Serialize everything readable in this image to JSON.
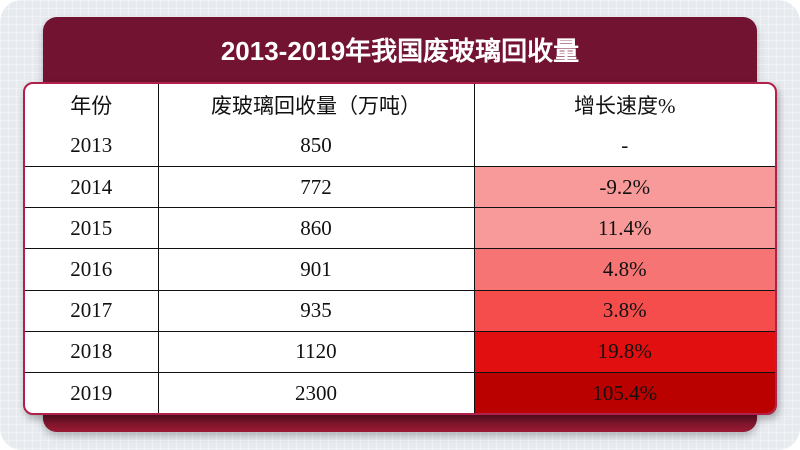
{
  "chart_data": {
    "type": "table",
    "title": "2013-2019年我国废玻璃回收量",
    "columns": [
      "年份",
      "废玻璃回收量（万吨）",
      "增长速度%"
    ],
    "rows": [
      {
        "year": "2013",
        "amount": "850",
        "growth": "-",
        "color": "#ffffff"
      },
      {
        "year": "2014",
        "amount": "772",
        "growth": "-9.2%",
        "color": "#f99a9a"
      },
      {
        "year": "2015",
        "amount": "860",
        "growth": "11.4%",
        "color": "#f99a9a"
      },
      {
        "year": "2016",
        "amount": "901",
        "growth": "4.8%",
        "color": "#f77474"
      },
      {
        "year": "2017",
        "amount": "935",
        "growth": "3.8%",
        "color": "#f54c4c"
      },
      {
        "year": "2018",
        "amount": "1120",
        "growth": "19.8%",
        "color": "#e10f0f"
      },
      {
        "year": "2019",
        "amount": "2300",
        "growth": "105.4%",
        "color": "#bb0000"
      }
    ]
  }
}
